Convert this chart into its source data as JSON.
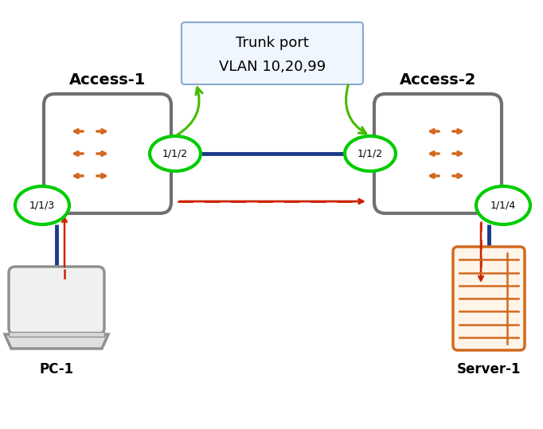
{
  "bg_color": "#ffffff",
  "switch_color": "#707070",
  "arrow_color": "#d2691e",
  "green_circle_color": "#00cc00",
  "blue_line_color": "#1a3a8a",
  "dashed_arrow_color": "#cc2200",
  "trunk_border_color": "#88aacc",
  "trunk_bg_color": "#f0f6ff",
  "text_color": "#000000",
  "orange_device_color": "#d2691e",
  "gray_device_color": "#909090",
  "access1_label": "Access-1",
  "access2_label": "Access-2",
  "trunk_label1": "Trunk port",
  "trunk_label2": "VLAN 10,20,99",
  "port_1_1_2_left": "1/1/2",
  "port_1_1_2_right": "1/1/2",
  "port_1_1_3": "1/1/3",
  "port_1_1_4": "1/1/4",
  "pc_label": "PC-1",
  "server_label": "Server-1",
  "figw": 6.82,
  "figh": 5.39,
  "dpi": 100
}
